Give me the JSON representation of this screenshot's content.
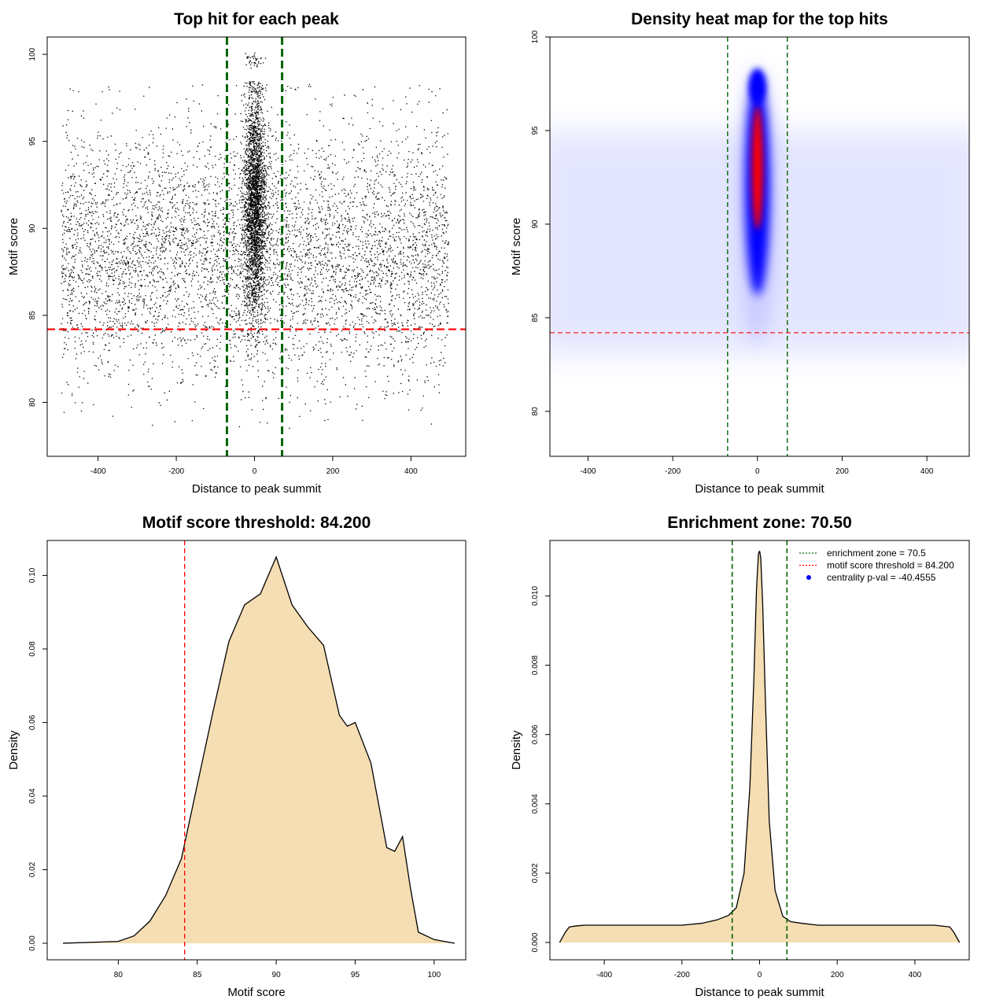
{
  "chart_data": [
    {
      "type": "scatter",
      "title": "Top hit for each peak",
      "xlabel": "Distance to peak summit",
      "ylabel": "Motif score",
      "xlim": [
        -530,
        540
      ],
      "ylim": [
        76.9,
        101.0
      ],
      "xticks": [
        -400,
        -200,
        0,
        200,
        400
      ],
      "yticks": [
        80,
        85,
        90,
        95,
        100
      ],
      "vlines": [
        -70.5,
        70.5
      ],
      "hline": 84.2,
      "vline_color": "#006400",
      "hline_color": "#ff0000",
      "point_color": "#000000",
      "x_range": [
        -500,
        500
      ],
      "y_range": [
        77.6,
        100.0
      ],
      "note_grid": false
    },
    {
      "type": "heatmap",
      "title": "Density heat map for the top hits",
      "xlabel": "Distance to peak summit",
      "ylabel": "Motif score",
      "xlim": [
        -490,
        500
      ],
      "ylim": [
        77.6,
        100.0
      ],
      "xticks": [
        -400,
        -200,
        0,
        200,
        400
      ],
      "yticks": [
        80,
        85,
        90,
        95,
        100
      ],
      "vlines": [
        -70.5,
        70.5
      ],
      "hline": 84.2,
      "colors": [
        "#ffffff",
        "#0000ff",
        "#ff0000"
      ],
      "peak_x": 0,
      "peak_y": 93
    },
    {
      "type": "area",
      "title": "Motif score threshold: 84.200",
      "xlabel": "Motif score",
      "ylabel": "Density",
      "xlim": [
        75.5,
        102
      ],
      "ylim": [
        -0.0045,
        0.1095
      ],
      "xticks": [
        80,
        85,
        90,
        95,
        100
      ],
      "yticks": [
        0.0,
        0.02,
        0.04,
        0.06,
        0.08,
        0.1
      ],
      "ytick_labels": [
        "0.00",
        "0.02",
        "0.04",
        "0.06",
        "0.08",
        "0.10"
      ],
      "vline": 84.2,
      "fill": "#f5deb3",
      "x": [
        76.5,
        80.0,
        81.0,
        82.0,
        83.0,
        84.0,
        85.0,
        86.0,
        87.0,
        88.0,
        89.0,
        90.0,
        91.0,
        92.0,
        93.0,
        94.0,
        94.5,
        95.0,
        96.0,
        97.0,
        97.5,
        98.0,
        98.5,
        99.0,
        100.0,
        101.3
      ],
      "y": [
        0.0,
        0.0005,
        0.002,
        0.006,
        0.013,
        0.023,
        0.043,
        0.063,
        0.082,
        0.092,
        0.095,
        0.105,
        0.092,
        0.086,
        0.081,
        0.062,
        0.059,
        0.06,
        0.049,
        0.026,
        0.025,
        0.029,
        0.015,
        0.003,
        0.001,
        0.0
      ]
    },
    {
      "type": "area",
      "title": "Enrichment zone: 70.50",
      "xlabel": "Distance to peak summit",
      "ylabel": "Density",
      "xlim": [
        -540,
        540
      ],
      "ylim": [
        -0.0005,
        0.0116
      ],
      "xticks": [
        -400,
        -200,
        0,
        200,
        400
      ],
      "yticks": [
        0.0,
        0.002,
        0.004,
        0.006,
        0.008,
        0.01
      ],
      "ytick_labels": [
        "0.000",
        "0.002",
        "0.004",
        "0.006",
        "0.008",
        "0.010"
      ],
      "vlines": [
        -70.5,
        70.5
      ],
      "fill": "#f5deb3",
      "x": [
        -515,
        -500,
        -490,
        -470,
        -450,
        -400,
        -350,
        -300,
        -250,
        -200,
        -150,
        -110,
        -80,
        -60,
        -40,
        -25,
        -15,
        -8,
        -3,
        0,
        3,
        8,
        15,
        25,
        40,
        60,
        80,
        110,
        150,
        200,
        250,
        300,
        350,
        400,
        450,
        490,
        500,
        515
      ],
      "y": [
        0.0,
        0.0003,
        0.00045,
        0.00048,
        0.0005,
        0.0005,
        0.0005,
        0.0005,
        0.0005,
        0.0005,
        0.00055,
        0.00065,
        0.00078,
        0.001,
        0.002,
        0.0045,
        0.0075,
        0.0102,
        0.0112,
        0.0113,
        0.0111,
        0.0098,
        0.007,
        0.0035,
        0.0015,
        0.00075,
        0.0006,
        0.00055,
        0.0005,
        0.0005,
        0.0005,
        0.0005,
        0.0005,
        0.0005,
        0.0005,
        0.00045,
        0.0003,
        0.0
      ],
      "legend": {
        "position": "top-right",
        "items": [
          {
            "label": "enrichment zone = 70.5",
            "color": "#006400",
            "style": "dotted-line"
          },
          {
            "label": "motif score threshold = 84.200",
            "color": "#ff0000",
            "style": "dotted-line"
          },
          {
            "label": "centrality p-val = -40.4555",
            "color": "#0000ff",
            "style": "point"
          }
        ]
      }
    }
  ]
}
